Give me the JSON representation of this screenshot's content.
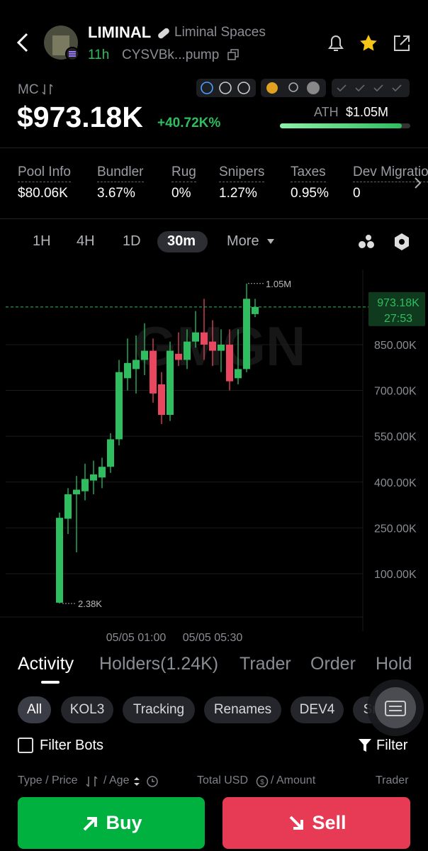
{
  "header": {
    "token_name": "LIMINAL",
    "token_desc": "Liminal Spaces",
    "age": "11h",
    "address": "CYSVBk...pump"
  },
  "market": {
    "mc_label": "MC",
    "mc_value": "$973.18K",
    "change": "+40.72K%",
    "ath_label": "ATH",
    "ath_value": "$1.05M"
  },
  "stats": [
    {
      "label": "Pool Info",
      "value": "$80.06K"
    },
    {
      "label": "Bundler",
      "value": "3.67%"
    },
    {
      "label": "Rug",
      "value": "0%"
    },
    {
      "label": "Snipers",
      "value": "1.27%"
    },
    {
      "label": "Taxes",
      "value": "0.95%"
    },
    {
      "label": "Dev Migrations",
      "value": "0"
    }
  ],
  "timeframes": [
    "1H",
    "4H",
    "1D",
    "30m",
    "More"
  ],
  "chart_data": {
    "type": "candlestick",
    "watermark": "GMGN",
    "categories": [
      null,
      null,
      null,
      null,
      null,
      null,
      null,
      null,
      null,
      "05/05 01:00",
      null,
      null,
      null,
      null,
      null,
      null,
      null,
      null,
      "05/05 05:30",
      null,
      null,
      null,
      null,
      null
    ],
    "open": [
      5000,
      280000,
      360000,
      370000,
      405000,
      415000,
      450000,
      540000,
      740000,
      770000,
      800000,
      830000,
      720000,
      620000,
      820000,
      800000,
      860000,
      890000,
      860000,
      830000,
      850000,
      740000,
      770000,
      950000
    ],
    "high": [
      300000,
      380000,
      420000,
      460000,
      470000,
      480000,
      560000,
      800000,
      870000,
      880000,
      920000,
      870000,
      760000,
      860000,
      890000,
      900000,
      960000,
      1000000,
      930000,
      900000,
      900000,
      900000,
      1050000,
      1000000
    ],
    "low": [
      2380,
      230000,
      170000,
      340000,
      360000,
      380000,
      430000,
      520000,
      700000,
      690000,
      750000,
      660000,
      590000,
      600000,
      780000,
      770000,
      840000,
      800000,
      780000,
      760000,
      700000,
      720000,
      760000,
      940000
    ],
    "close": [
      283000,
      360000,
      375000,
      410000,
      425000,
      450000,
      540000,
      760000,
      790000,
      800000,
      830000,
      690000,
      620000,
      830000,
      800000,
      860000,
      890000,
      850000,
      830000,
      850000,
      730000,
      770000,
      1000000,
      973180
    ],
    "up_color": "#2ebd5f",
    "down_color": "#e8475f",
    "ylim": [
      -41700,
      1096000
    ],
    "yticks": [
      {
        "value": 100000,
        "label": "100.00K"
      },
      {
        "value": 250000,
        "label": "250.00K"
      },
      {
        "value": 400000,
        "label": "400.00K"
      },
      {
        "value": 550000,
        "label": "550.00K"
      },
      {
        "value": 700000,
        "label": "700.00K"
      },
      {
        "value": 850000,
        "label": "850.00K"
      }
    ],
    "grid": true,
    "max_label": {
      "value": 1050000,
      "label": "1.05M"
    },
    "min_label": {
      "value": 2380,
      "label": "2.38K"
    },
    "price_line": {
      "value": 973180,
      "label": "973.18K",
      "countdown": "27:53"
    }
  },
  "tabs": [
    "Activity",
    "Holders(1.24K)",
    "Trader",
    "Order",
    "Holders"
  ],
  "chips": [
    "All",
    "KOL3",
    "Tracking",
    "Renames",
    "DEV4",
    "Smart"
  ],
  "filters": {
    "bots": "Filter Bots",
    "filter": "Filter"
  },
  "columns": {
    "type_price": "Type / Price",
    "age": "/ Age",
    "total": "Total USD",
    "amount": "/ Amount",
    "trader": "Trader"
  },
  "actions": {
    "buy": "Buy",
    "sell": "Sell"
  }
}
